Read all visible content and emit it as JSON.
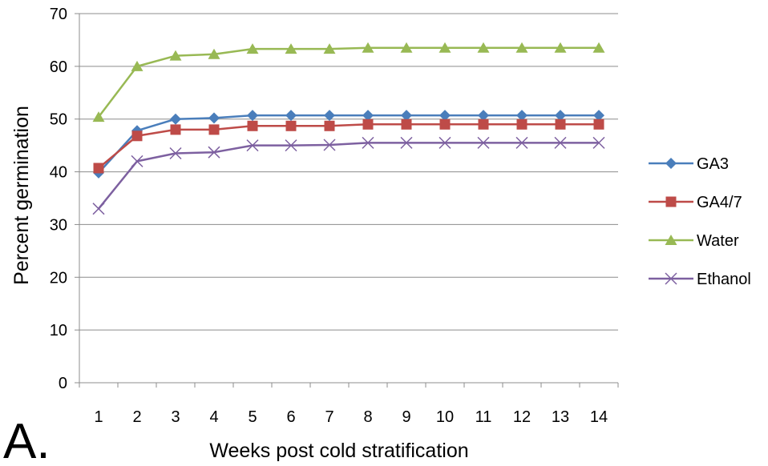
{
  "panel_label": "A.",
  "chart_data": {
    "type": "line",
    "xlabel": "Weeks post cold stratification",
    "ylabel": "Percent germination",
    "ylim": [
      0,
      70
    ],
    "yticks": [
      0,
      10,
      20,
      30,
      40,
      50,
      60,
      70
    ],
    "categories": [
      "1",
      "2",
      "3",
      "4",
      "5",
      "6",
      "7",
      "8",
      "9",
      "10",
      "11",
      "12",
      "13",
      "14"
    ],
    "grid": "horizontal",
    "legend_position": "right",
    "series": [
      {
        "name": "GA3",
        "color": "#4a7ebb",
        "marker": "diamond",
        "values": [
          39.8,
          47.8,
          50.0,
          50.2,
          50.7,
          50.7,
          50.7,
          50.7,
          50.7,
          50.7,
          50.7,
          50.7,
          50.7,
          50.7
        ]
      },
      {
        "name": "GA4/7",
        "color": "#be4b48",
        "marker": "square",
        "values": [
          40.7,
          46.8,
          48.0,
          48.0,
          48.7,
          48.7,
          48.7,
          49.0,
          49.0,
          49.0,
          49.0,
          49.0,
          49.0,
          49.0
        ]
      },
      {
        "name": "Water",
        "color": "#98b954",
        "marker": "triangle",
        "values": [
          50.4,
          60.0,
          62.0,
          62.3,
          63.3,
          63.3,
          63.3,
          63.5,
          63.5,
          63.5,
          63.5,
          63.5,
          63.5,
          63.5
        ]
      },
      {
        "name": "Ethanol",
        "color": "#7d60a0",
        "marker": "x",
        "values": [
          33.0,
          42.0,
          43.5,
          43.7,
          45.0,
          45.0,
          45.1,
          45.5,
          45.5,
          45.5,
          45.5,
          45.5,
          45.5,
          45.5
        ]
      }
    ]
  }
}
